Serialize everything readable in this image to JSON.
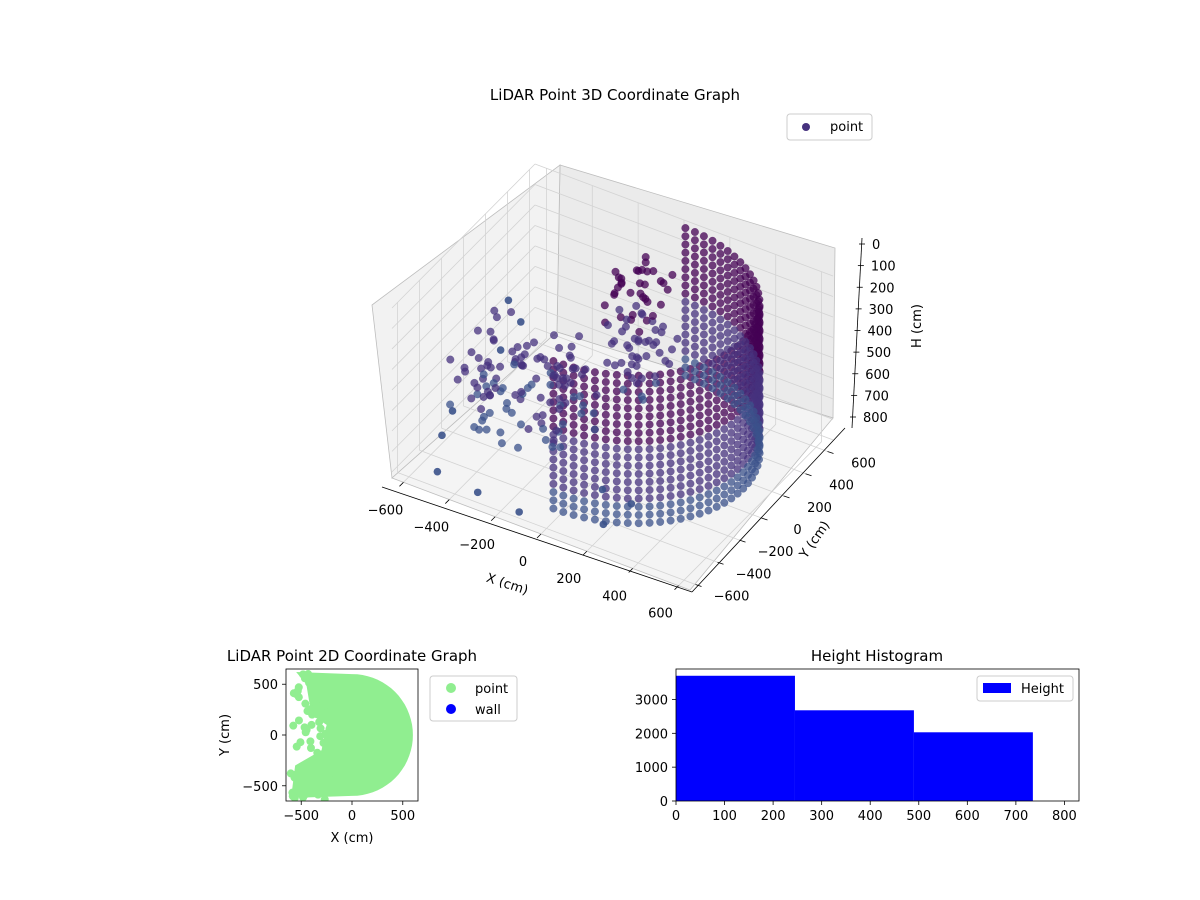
{
  "figure": {
    "colors": {
      "point3d_dark": "#440154",
      "point3d_mid": "#46327e",
      "point3d_light": "#3b528b",
      "scatter2d_point": "#90ee90",
      "scatter2d_wall": "#0000ff",
      "histogram": "#0000ff"
    }
  },
  "chart_data": [
    {
      "type": "scatter3d",
      "title": "LiDAR Point 3D Coordinate Graph",
      "xlabel": "X (cm)",
      "ylabel": "Y (cm)",
      "zlabel": "H (cm)",
      "xticks": [
        "−600",
        "−400",
        "−200",
        "0",
        "200",
        "400",
        "600"
      ],
      "yticks": [
        "−600",
        "−400",
        "−200",
        "0",
        "200",
        "400",
        "600"
      ],
      "zticks": [
        "0",
        "100",
        "200",
        "300",
        "400",
        "500",
        "600",
        "700",
        "800"
      ],
      "xlim": [
        -650,
        650
      ],
      "ylim": [
        -650,
        650
      ],
      "zlim": [
        0,
        830
      ],
      "z_inverted": true,
      "legend": {
        "placement": "top-right",
        "entries": [
          "point"
        ]
      },
      "description_series": [
        {
          "name": "point",
          "shape": "half-cylinder wall",
          "radius": 600,
          "theta_deg": [
            -90,
            90
          ],
          "h": [
            0,
            730
          ]
        }
      ],
      "outliers": [
        {
          "x": -650,
          "y": -100,
          "h": 800
        },
        {
          "x": -600,
          "y": -300,
          "h": 790
        },
        {
          "x": -500,
          "y": -550,
          "h": 790
        },
        {
          "x": -300,
          "y": -600,
          "h": 780
        },
        {
          "x": -100,
          "y": -640,
          "h": 770
        },
        {
          "x": 200,
          "y": -500,
          "h": 780
        },
        {
          "x": 100,
          "y": -300,
          "h": 760
        },
        {
          "x": 250,
          "y": -350,
          "h": 740
        },
        {
          "x": -550,
          "y": 200,
          "h": 380
        },
        {
          "x": -520,
          "y": 250,
          "h": 500
        },
        {
          "x": -560,
          "y": 150,
          "h": 600
        }
      ]
    },
    {
      "type": "scatter",
      "title": "LiDAR Point 2D Coordinate Graph",
      "xlabel": "X (cm)",
      "ylabel": "Y (cm)",
      "xticks": [
        "−500",
        "0",
        "500"
      ],
      "yticks": [
        "−500",
        "0",
        "500"
      ],
      "xlim": [
        -650,
        650
      ],
      "ylim": [
        -650,
        650
      ],
      "legend": {
        "placement": "outside-right",
        "entries": [
          "point",
          "wall"
        ]
      },
      "series": [
        {
          "name": "point",
          "region": "half-disc radius 600 centered at origin, x from 0 to 600, plus scattered points toward x=-600"
        },
        {
          "name": "wall",
          "points": []
        }
      ]
    },
    {
      "type": "bar",
      "title": "Height Histogram",
      "xticks": [
        "0",
        "100",
        "200",
        "300",
        "400",
        "500",
        "600",
        "700",
        "800"
      ],
      "yticks": [
        "0",
        "1000",
        "2000",
        "3000"
      ],
      "xlim": [
        0,
        830
      ],
      "ylim": [
        0,
        3900
      ],
      "legend": {
        "placement": "top-right",
        "entries": [
          "Height"
        ]
      },
      "bins": [
        {
          "start": 0,
          "end": 245,
          "count": 3700
        },
        {
          "start": 245,
          "end": 490,
          "count": 2680
        },
        {
          "start": 490,
          "end": 735,
          "count": 2030
        }
      ]
    }
  ]
}
